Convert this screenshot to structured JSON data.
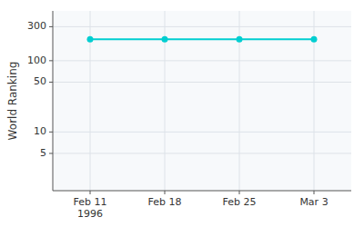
{
  "chart_data": {
    "type": "line",
    "y_label": "World Ranking",
    "categories": [
      "Feb 11\n1996",
      "Feb 18",
      "Feb 25",
      "Mar 3"
    ],
    "values": [
      200,
      200,
      200,
      200
    ],
    "color": "#00CED1",
    "marker": "circle",
    "log": "y",
    "ylim": [
      1.5,
      500
    ],
    "yticks": [
      5,
      10,
      50,
      100,
      300
    ],
    "grid": true
  }
}
